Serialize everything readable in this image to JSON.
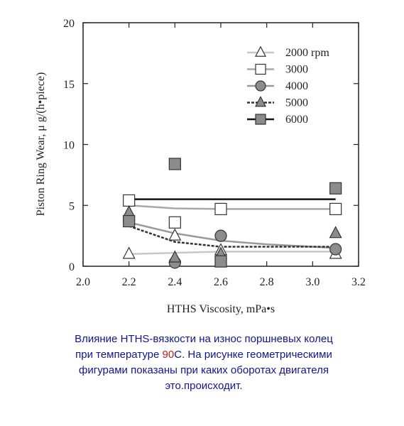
{
  "chart_data": {
    "type": "scatter",
    "xlabel": "HTHS Viscosity, mPa•s",
    "ylabel": "Piston Ring Wear,  μ g/(h•piece)",
    "x": [
      2.2,
      2.4,
      2.6,
      3.1
    ],
    "xlim": [
      2.0,
      3.2
    ],
    "xticks": [
      {
        "value": 2.0,
        "label": "2.0"
      },
      2.2,
      2.4,
      2.6,
      2.8,
      {
        "value": 3.0,
        "label": "3.0"
      },
      3.2
    ],
    "ylim": [
      0,
      20
    ],
    "yticks": [
      0,
      5,
      10,
      15,
      20
    ],
    "trend_x": [
      2.2,
      2.4,
      2.6,
      2.8,
      3.0,
      3.1
    ],
    "series": [
      {
        "name": "2000 rpm",
        "marker": "triangle",
        "color": "#ffffff",
        "line_color": "#c8c8c8",
        "dash": false,
        "values": [
          1.0,
          2.5,
          1.3,
          1.0
        ],
        "trend": [
          1.0,
          1.1,
          1.2,
          1.2,
          1.2,
          1.2
        ]
      },
      {
        "name": "3000",
        "marker": "square",
        "color": "#ffffff",
        "line_color": "#a8a8a8",
        "dash": false,
        "values": [
          5.4,
          3.6,
          4.7,
          4.7
        ],
        "trend": [
          5.0,
          4.75,
          4.7,
          4.7,
          4.7,
          4.7
        ]
      },
      {
        "name": "4000",
        "marker": "circle",
        "color": "#8c8c8c",
        "line_color": "#999999",
        "dash": false,
        "values": [
          3.8,
          0.3,
          2.5,
          1.4
        ],
        "trend": [
          3.6,
          2.7,
          2.1,
          1.8,
          1.6,
          1.5
        ]
      },
      {
        "name": "5000",
        "marker": "triangle",
        "color": "#8c8c8c",
        "line_color": "#333333",
        "dash": true,
        "values": [
          4.4,
          0.7,
          1.0,
          2.7
        ],
        "trend": [
          3.3,
          2.0,
          1.6,
          1.6,
          1.6,
          1.6
        ]
      },
      {
        "name": "6000",
        "marker": "square",
        "color": "#8c8c8c",
        "line_color": "#111111",
        "dash": false,
        "values": [
          3.7,
          8.4,
          0.4,
          6.4
        ],
        "trend": [
          5.5,
          5.5,
          5.5,
          5.5,
          5.5,
          5.5
        ]
      }
    ],
    "caption": {
      "line1": "Влияние HTHS-вязкости на износ поршневых колец",
      "line2_start": "при температуре ",
      "line2_highlight": "90",
      "line2_end": "С. На рисунке геометрическими",
      "line3": "фигурами показаны при каких оборотах двигателя",
      "line4": "это.происходит."
    }
  }
}
